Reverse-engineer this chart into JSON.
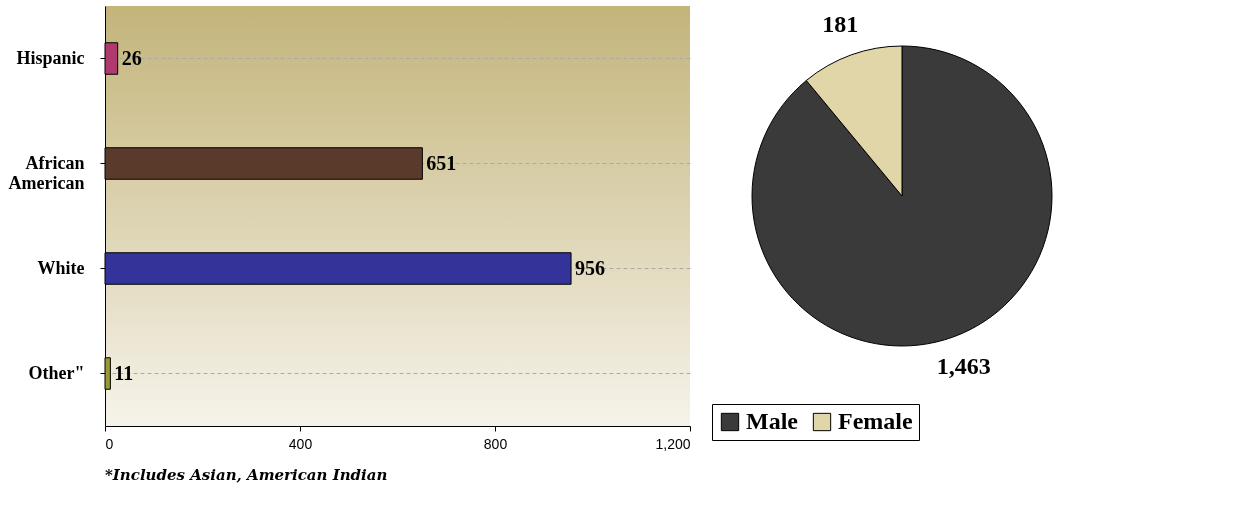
{
  "chart_data": [
    {
      "type": "bar",
      "orientation": "horizontal",
      "categories": [
        "Hispanic",
        "African American",
        "White",
        "Other\""
      ],
      "values": [
        26,
        651,
        956,
        11
      ],
      "colors": [
        "#b03a6e",
        "#5a3a2a",
        "#333399",
        "#999933"
      ],
      "xlim": [
        0,
        1200
      ],
      "xticks": [
        0,
        400,
        800,
        {
          "value": 1200,
          "label": "1,200"
        }
      ],
      "grid": "y",
      "data_labels": true,
      "annotations": [
        "*Includes Asian, American Indian"
      ]
    },
    {
      "type": "pie",
      "categories": [
        "Male",
        "Female"
      ],
      "values": [
        1463,
        181
      ],
      "colors": [
        "#3a3a3a",
        "#e0d6a8"
      ],
      "value_labels": [
        "1,463",
        "181"
      ],
      "legend": "bottom"
    }
  ]
}
